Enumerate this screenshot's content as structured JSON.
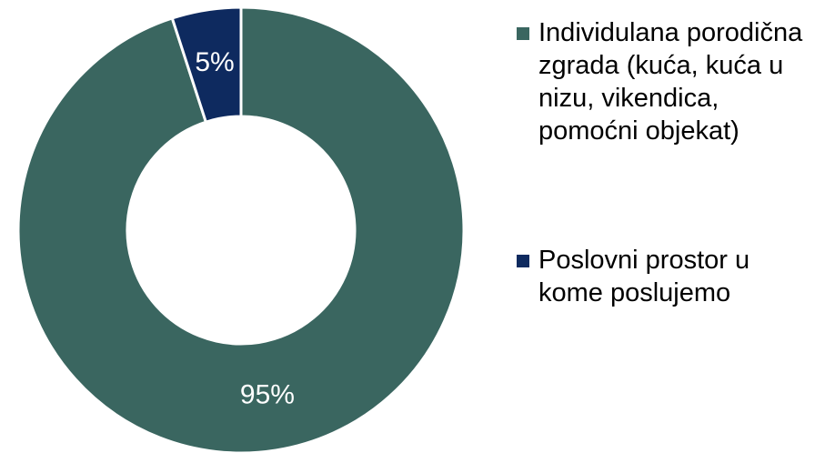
{
  "chart_data": {
    "type": "donut",
    "categories": [
      "Individulana porodična zgrada (kuća, kuća u nizu, vikendica, pomoćni objekat)",
      "Poslovni prostor u kome poslujemo"
    ],
    "values": [
      95,
      5
    ],
    "value_labels": [
      "95%",
      "5%"
    ],
    "colors": [
      "#3a6660",
      "#0e2a5f"
    ],
    "label_colors": [
      "#ffffff",
      "#ffffff"
    ],
    "legend": "right"
  }
}
